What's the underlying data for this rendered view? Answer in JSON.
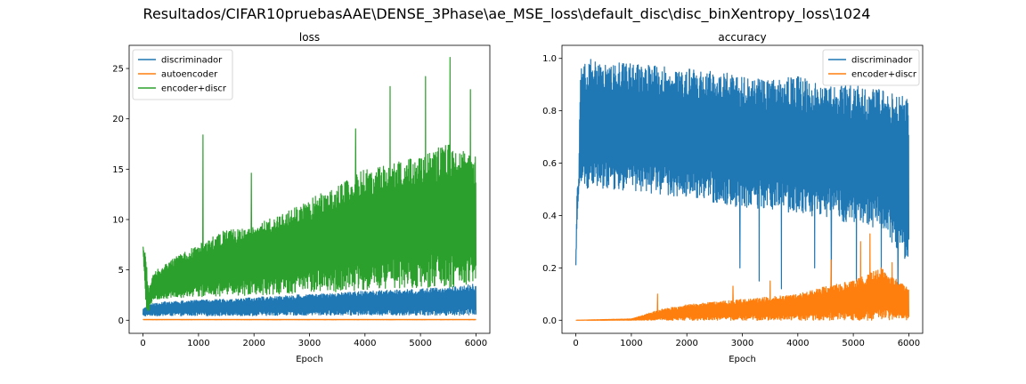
{
  "figure": {
    "suptitle": "Resultados/CIFAR10pruebasAAE\\DENSE_3Phase\\ae_MSE_loss\\default_disc\\disc_binXentropy_loss\\1024"
  },
  "chart_data": [
    {
      "type": "line",
      "title": "loss",
      "xlabel": "Epoch",
      "ylabel": "",
      "xlim": [
        -250,
        6250
      ],
      "ylim": [
        -1.3,
        27.3
      ],
      "xticks": [
        0,
        1000,
        2000,
        3000,
        4000,
        5000,
        6000
      ],
      "yticks": [
        0,
        5,
        10,
        15,
        20,
        25
      ],
      "grid": false,
      "legend": "top-left",
      "series": [
        {
          "name": "discriminador",
          "color": "#1f77b4",
          "x": [
            0,
            100,
            500,
            1000,
            1500,
            2000,
            2500,
            3000,
            3500,
            4000,
            4500,
            5000,
            5500,
            6000
          ],
          "low": [
            0.4,
            0.45,
            0.45,
            0.45,
            0.45,
            0.45,
            0.5,
            0.5,
            0.5,
            0.5,
            0.5,
            0.5,
            0.5,
            0.5
          ],
          "high": [
            1.1,
            1.6,
            1.9,
            2.0,
            2.1,
            2.3,
            2.4,
            2.6,
            2.7,
            2.9,
            3.0,
            3.1,
            3.3,
            3.6
          ]
        },
        {
          "name": "autoencoder",
          "color": "#ff7f0e",
          "x": [
            0,
            6000
          ],
          "low": [
            0.05,
            0.05
          ],
          "high": [
            0.08,
            0.08
          ]
        },
        {
          "name": "encoder+discr",
          "color": "#2ca02c",
          "x": [
            0,
            50,
            100,
            200,
            500,
            1000,
            1500,
            2000,
            2500,
            3000,
            3500,
            4000,
            4500,
            5000,
            5500,
            6000
          ],
          "low": [
            7.3,
            1.0,
            0.9,
            2.0,
            2.2,
            2.3,
            2.4,
            2.5,
            2.6,
            2.7,
            2.8,
            3.0,
            3.1,
            3.2,
            3.3,
            3.5
          ],
          "high": [
            7.3,
            6.5,
            3.0,
            4.8,
            6.0,
            7.5,
            9.0,
            9.5,
            10.5,
            12.0,
            13.5,
            15.0,
            15.5,
            16.5,
            17.5,
            16.5
          ],
          "peaks": [
            {
              "x": 1080,
              "y": 18.4
            },
            {
              "x": 1950,
              "y": 14.6
            },
            {
              "x": 3830,
              "y": 19.0
            },
            {
              "x": 4450,
              "y": 23.2
            },
            {
              "x": 5090,
              "y": 24.2
            },
            {
              "x": 5530,
              "y": 26.1
            },
            {
              "x": 5900,
              "y": 22.9
            }
          ]
        }
      ]
    },
    {
      "type": "line",
      "title": "accuracy",
      "xlabel": "Epoch",
      "ylabel": "",
      "xlim": [
        -250,
        6250
      ],
      "ylim": [
        -0.05,
        1.05
      ],
      "xticks": [
        0,
        1000,
        2000,
        3000,
        4000,
        5000,
        6000
      ],
      "yticks": [
        0.0,
        0.2,
        0.4,
        0.6,
        0.8,
        1.0
      ],
      "grid": false,
      "legend": "top-right",
      "series": [
        {
          "name": "discriminador",
          "color": "#1f77b4",
          "x": [
            0,
            20,
            50,
            80,
            500,
            1000,
            1500,
            2000,
            2500,
            3000,
            3500,
            4000,
            4500,
            5000,
            5500,
            6000
          ],
          "low": [
            0.21,
            0.37,
            0.48,
            0.5,
            0.5,
            0.49,
            0.48,
            0.47,
            0.45,
            0.43,
            0.42,
            0.4,
            0.39,
            0.37,
            0.35,
            0.2
          ],
          "high": [
            0.21,
            0.5,
            0.52,
            1.0,
            1.0,
            0.98,
            0.97,
            0.96,
            0.95,
            0.94,
            0.92,
            0.93,
            0.9,
            0.9,
            0.88,
            0.85
          ],
          "dips": [
            {
              "x": 2950,
              "y": 0.2
            },
            {
              "x": 3300,
              "y": 0.15
            },
            {
              "x": 3700,
              "y": 0.12
            },
            {
              "x": 4300,
              "y": 0.2
            },
            {
              "x": 4600,
              "y": 0.12
            },
            {
              "x": 5050,
              "y": 0.15
            },
            {
              "x": 5500,
              "y": 0.18
            },
            {
              "x": 5800,
              "y": 0.1
            }
          ]
        },
        {
          "name": "encoder+discr",
          "color": "#ff7f0e",
          "x": [
            0,
            1000,
            1500,
            2000,
            2500,
            3000,
            3500,
            4000,
            4500,
            5000,
            5500,
            6000
          ],
          "low": [
            0.0,
            0.0,
            0.0,
            0.0,
            0.0,
            0.0,
            0.0,
            0.0,
            0.0,
            0.0,
            0.0,
            0.0
          ],
          "high": [
            0.0,
            0.005,
            0.04,
            0.06,
            0.07,
            0.08,
            0.09,
            0.1,
            0.13,
            0.15,
            0.2,
            0.12
          ],
          "peaks": [
            {
              "x": 1470,
              "y": 0.1
            },
            {
              "x": 2830,
              "y": 0.13
            },
            {
              "x": 3500,
              "y": 0.15
            },
            {
              "x": 4600,
              "y": 0.23
            },
            {
              "x": 5130,
              "y": 0.3
            },
            {
              "x": 5300,
              "y": 0.33
            },
            {
              "x": 5700,
              "y": 0.22
            }
          ]
        }
      ]
    }
  ]
}
